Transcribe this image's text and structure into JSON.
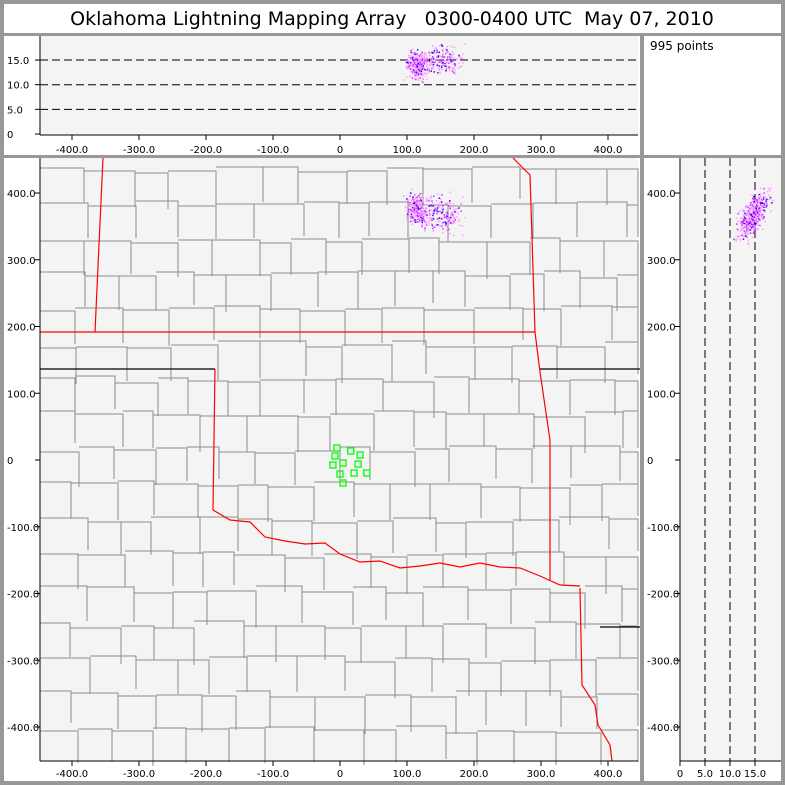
{
  "title": "Oklahoma Lightning Mapping Array   0300-0400 UTC  May 07, 2010",
  "info_panel": {
    "count_label": "995 points"
  },
  "colors": {
    "frame": "#989898",
    "plot_bg": "#f4f4f4",
    "state_border": "#ff0000",
    "county_border": "#8c8c8c",
    "station": "#00ff00",
    "density_low": "#ff99ff",
    "density_mid": "#cc33ff",
    "density_high": "#3300ff"
  },
  "chart_data": [
    {
      "type": "scatter",
      "panel": "altitude-vs-east-west",
      "xlim": [
        -450,
        450
      ],
      "ylim": [
        0,
        20
      ],
      "x_ticks": [
        {
          "v": -400,
          "l": "-400.0"
        },
        {
          "v": -300,
          "l": "-300.0"
        },
        {
          "v": -200,
          "l": "-200.0"
        },
        {
          "v": -100,
          "l": "-100.0"
        },
        {
          "v": 0,
          "l": "0"
        },
        {
          "v": 100,
          "l": "100.0"
        },
        {
          "v": 200,
          "l": "200.0"
        },
        {
          "v": 300,
          "l": "300.0"
        },
        {
          "v": 400,
          "l": "400.0"
        }
      ],
      "y_ticks": [
        {
          "v": 15,
          "l": "15.0"
        },
        {
          "v": 10,
          "l": "10.0"
        },
        {
          "v": 5,
          "l": "5.0"
        },
        {
          "v": 0,
          "l": "0"
        }
      ],
      "dashed_lines": [
        5,
        10,
        15
      ],
      "point_count": 995
    },
    {
      "type": "scatter",
      "panel": "plan-view-map",
      "xlim": [
        -450,
        450
      ],
      "ylim": [
        -450,
        450
      ],
      "x_ticks": [
        {
          "v": -400,
          "l": "-400.0"
        },
        {
          "v": -300,
          "l": "-300.0"
        },
        {
          "v": -200,
          "l": "-200.0"
        },
        {
          "v": -100,
          "l": "-100.0"
        },
        {
          "v": 0,
          "l": "0"
        },
        {
          "v": 100,
          "l": "100.0"
        },
        {
          "v": 200,
          "l": "200.0"
        },
        {
          "v": 300,
          "l": "300.0"
        },
        {
          "v": 400,
          "l": "400.0"
        }
      ],
      "y_ticks": [
        {
          "v": 400,
          "l": "400.0"
        },
        {
          "v": 300,
          "l": "300.0"
        },
        {
          "v": 200,
          "l": "200.0"
        },
        {
          "v": 100,
          "l": "100.0"
        },
        {
          "v": 0,
          "l": "0"
        },
        {
          "v": -100,
          "l": "-100.0"
        },
        {
          "v": -200,
          "l": "-200.0"
        },
        {
          "v": -300,
          "l": "-300.0"
        },
        {
          "v": -400,
          "l": "-400.0"
        }
      ],
      "stations": [
        [
          -4.5,
          18
        ],
        [
          16,
          13.5
        ],
        [
          30,
          7.5
        ],
        [
          -7.5,
          6
        ],
        [
          4.5,
          -4.5
        ],
        [
          -10.5,
          -7.5
        ],
        [
          27,
          -6
        ],
        [
          0,
          -21
        ],
        [
          21,
          -19.5
        ],
        [
          40,
          -19.5
        ],
        [
          4.5,
          -34.5
        ]
      ]
    },
    {
      "type": "scatter",
      "panel": "north-south-vs-altitude",
      "xlim": [
        0,
        20
      ],
      "ylim": [
        -450,
        450
      ],
      "x_ticks": [
        {
          "v": 0,
          "l": "0"
        },
        {
          "v": 5,
          "l": "5.0"
        },
        {
          "v": 10,
          "l": "10.0"
        },
        {
          "v": 15,
          "l": "15.0"
        }
      ],
      "y_ticks": [
        {
          "v": 400,
          "l": "400.0"
        },
        {
          "v": 300,
          "l": "300.0"
        },
        {
          "v": 200,
          "l": "200.0"
        },
        {
          "v": 100,
          "l": "100.0"
        },
        {
          "v": 0,
          "l": "0"
        },
        {
          "v": -100,
          "l": "-100.0"
        },
        {
          "v": -200,
          "l": "-200.0"
        },
        {
          "v": -300,
          "l": "-300.0"
        },
        {
          "v": -400,
          "l": "-400.0"
        }
      ],
      "dashed_lines": [
        5,
        10,
        15
      ]
    }
  ]
}
